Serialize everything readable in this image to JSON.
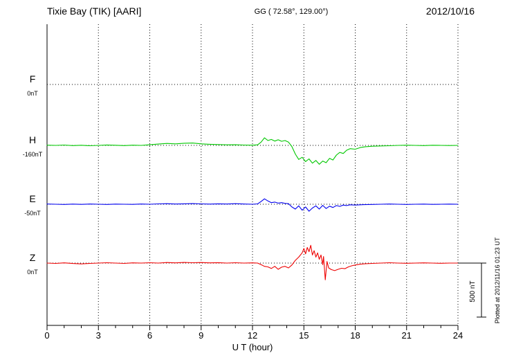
{
  "header": {
    "station": "Tixie Bay (TIK)  [AARI]",
    "gg_coords": "GG ( 72.58°, 129.00°)",
    "date": "2012/10/16"
  },
  "x_axis": {
    "label": "U T (hour)",
    "ticks": [
      0,
      3,
      6,
      9,
      12,
      15,
      18,
      21,
      24
    ],
    "min": 0,
    "max": 24
  },
  "scale_bar": {
    "label": "500 nT",
    "value_nT": 500
  },
  "side_note": "Plotted at 2012/11/16 01:23 UT",
  "chart_data": {
    "type": "line",
    "title": "Tixie Bay (TIK) [AARI] magnetogram 2012/10/16",
    "xlabel": "U T (hour)",
    "x_range": [
      0,
      24
    ],
    "grid": "dotted vertical lines every 3 hours, dotted horizontal baselines per component",
    "scale_nT_per_bar": 500,
    "series": [
      {
        "name": "F",
        "color": "#FFA500",
        "baseline_label": "0nT",
        "baseline_nT": 0,
        "points": []
      },
      {
        "name": "H",
        "color": "#00C800",
        "baseline_label": "-160nT",
        "baseline_nT": -160,
        "points": [
          [
            0,
            2
          ],
          [
            0.5,
            0
          ],
          [
            1,
            3
          ],
          [
            1.5,
            -2
          ],
          [
            2,
            1
          ],
          [
            2.5,
            -3
          ],
          [
            3,
            0
          ],
          [
            3.5,
            4
          ],
          [
            4,
            1
          ],
          [
            4.5,
            -2
          ],
          [
            5,
            2
          ],
          [
            5.5,
            0
          ],
          [
            6,
            6
          ],
          [
            6.5,
            12
          ],
          [
            7,
            18
          ],
          [
            7.5,
            14
          ],
          [
            8,
            20
          ],
          [
            8.5,
            22
          ],
          [
            9,
            14
          ],
          [
            9.5,
            10
          ],
          [
            10,
            8
          ],
          [
            10.5,
            5
          ],
          [
            11,
            6
          ],
          [
            11.5,
            3
          ],
          [
            12,
            2
          ],
          [
            12.3,
            5
          ],
          [
            12.5,
            30
          ],
          [
            12.7,
            70
          ],
          [
            12.9,
            45
          ],
          [
            13.1,
            55
          ],
          [
            13.3,
            40
          ],
          [
            13.5,
            52
          ],
          [
            13.7,
            38
          ],
          [
            13.9,
            45
          ],
          [
            14.1,
            30
          ],
          [
            14.3,
            -10
          ],
          [
            14.5,
            -80
          ],
          [
            14.7,
            -130
          ],
          [
            14.9,
            -110
          ],
          [
            15.1,
            -150
          ],
          [
            15.3,
            -125
          ],
          [
            15.5,
            -165
          ],
          [
            15.7,
            -140
          ],
          [
            15.9,
            -175
          ],
          [
            16.1,
            -145
          ],
          [
            16.3,
            -160
          ],
          [
            16.5,
            -120
          ],
          [
            16.7,
            -135
          ],
          [
            16.9,
            -90
          ],
          [
            17.1,
            -65
          ],
          [
            17.3,
            -75
          ],
          [
            17.5,
            -45
          ],
          [
            17.7,
            -30
          ],
          [
            18,
            -35
          ],
          [
            18.3,
            -20
          ],
          [
            18.6,
            -12
          ],
          [
            19,
            -8
          ],
          [
            19.5,
            -5
          ],
          [
            20,
            -3
          ],
          [
            20.5,
            0
          ],
          [
            21,
            2
          ],
          [
            21.5,
            0
          ],
          [
            22,
            -2
          ],
          [
            22.5,
            1
          ],
          [
            23,
            0
          ],
          [
            23.5,
            -1
          ],
          [
            24,
            0
          ]
        ]
      },
      {
        "name": "E",
        "color": "#0000EE",
        "baseline_label": "-50nT",
        "baseline_nT": -50,
        "points": [
          [
            0,
            2
          ],
          [
            0.5,
            0
          ],
          [
            1,
            -2
          ],
          [
            1.5,
            1
          ],
          [
            2,
            -1
          ],
          [
            2.5,
            2
          ],
          [
            3,
            0
          ],
          [
            3.5,
            -2
          ],
          [
            4,
            1
          ],
          [
            4.5,
            0
          ],
          [
            5,
            -1
          ],
          [
            5.5,
            2
          ],
          [
            6,
            0
          ],
          [
            6.5,
            3
          ],
          [
            7,
            5
          ],
          [
            7.5,
            2
          ],
          [
            8,
            4
          ],
          [
            8.5,
            6
          ],
          [
            9,
            3
          ],
          [
            9.5,
            1
          ],
          [
            10,
            4
          ],
          [
            10.5,
            2
          ],
          [
            11,
            5
          ],
          [
            11.5,
            2
          ],
          [
            12,
            0
          ],
          [
            12.3,
            3
          ],
          [
            12.5,
            25
          ],
          [
            12.7,
            50
          ],
          [
            12.9,
            30
          ],
          [
            13.1,
            15
          ],
          [
            13.3,
            20
          ],
          [
            13.5,
            10
          ],
          [
            13.7,
            15
          ],
          [
            13.9,
            8
          ],
          [
            14.1,
            5
          ],
          [
            14.3,
            -25
          ],
          [
            14.5,
            -45
          ],
          [
            14.7,
            -15
          ],
          [
            14.9,
            -55
          ],
          [
            15.1,
            -25
          ],
          [
            15.3,
            -65
          ],
          [
            15.5,
            -35
          ],
          [
            15.7,
            -15
          ],
          [
            15.9,
            -45
          ],
          [
            16.1,
            -10
          ],
          [
            16.3,
            -40
          ],
          [
            16.5,
            -18
          ],
          [
            16.7,
            -30
          ],
          [
            16.9,
            -12
          ],
          [
            17.1,
            -20
          ],
          [
            17.3,
            -8
          ],
          [
            17.5,
            -12
          ],
          [
            17.7,
            -5
          ],
          [
            18,
            -8
          ],
          [
            18.5,
            -4
          ],
          [
            19,
            -2
          ],
          [
            19.5,
            0
          ],
          [
            20,
            2
          ],
          [
            20.5,
            0
          ],
          [
            21,
            -2
          ],
          [
            21.5,
            0
          ],
          [
            22,
            1
          ],
          [
            22.5,
            -1
          ],
          [
            23,
            0
          ],
          [
            23.5,
            1
          ],
          [
            24,
            0
          ]
        ]
      },
      {
        "name": "Z",
        "color": "#EE0000",
        "baseline_label": "0nT",
        "baseline_nT": 0,
        "points": [
          [
            0,
            0
          ],
          [
            0.5,
            -3
          ],
          [
            1,
            2
          ],
          [
            1.5,
            -4
          ],
          [
            2,
            -8
          ],
          [
            2.5,
            -3
          ],
          [
            3,
            0
          ],
          [
            3.5,
            3
          ],
          [
            4,
            0
          ],
          [
            4.5,
            -3
          ],
          [
            5,
            2
          ],
          [
            5.5,
            0
          ],
          [
            6,
            3
          ],
          [
            6.5,
            0
          ],
          [
            7,
            5
          ],
          [
            7.5,
            2
          ],
          [
            8,
            6
          ],
          [
            8.5,
            3
          ],
          [
            9,
            5
          ],
          [
            9.5,
            2
          ],
          [
            10,
            4
          ],
          [
            10.5,
            0
          ],
          [
            11,
            3
          ],
          [
            11.5,
            0
          ],
          [
            12,
            2
          ],
          [
            12.3,
            0
          ],
          [
            12.5,
            -15
          ],
          [
            12.7,
            -30
          ],
          [
            12.9,
            -35
          ],
          [
            13.1,
            -50
          ],
          [
            13.3,
            -30
          ],
          [
            13.5,
            -58
          ],
          [
            13.7,
            -38
          ],
          [
            13.9,
            -30
          ],
          [
            14.1,
            -45
          ],
          [
            14.3,
            -18
          ],
          [
            14.5,
            25
          ],
          [
            14.7,
            55
          ],
          [
            14.9,
            95
          ],
          [
            15,
            135
          ],
          [
            15.1,
            85
          ],
          [
            15.2,
            145
          ],
          [
            15.3,
            105
          ],
          [
            15.4,
            165
          ],
          [
            15.5,
            75
          ],
          [
            15.6,
            115
          ],
          [
            15.7,
            55
          ],
          [
            15.8,
            95
          ],
          [
            15.9,
            35
          ],
          [
            16,
            75
          ],
          [
            16.1,
            -15
          ],
          [
            16.15,
            60
          ],
          [
            16.25,
            -155
          ],
          [
            16.35,
            15
          ],
          [
            16.45,
            -45
          ],
          [
            16.6,
            -60
          ],
          [
            16.8,
            -70
          ],
          [
            17,
            -58
          ],
          [
            17.2,
            -48
          ],
          [
            17.4,
            -52
          ],
          [
            17.6,
            -35
          ],
          [
            17.8,
            -25
          ],
          [
            18,
            -18
          ],
          [
            18.3,
            -10
          ],
          [
            18.6,
            -6
          ],
          [
            19,
            -3
          ],
          [
            19.5,
            0
          ],
          [
            20,
            3
          ],
          [
            20.5,
            0
          ],
          [
            21,
            -2
          ],
          [
            21.5,
            0
          ],
          [
            22,
            2
          ],
          [
            22.5,
            0
          ],
          [
            23,
            -2
          ],
          [
            23.5,
            0
          ],
          [
            24,
            0
          ]
        ]
      }
    ]
  }
}
